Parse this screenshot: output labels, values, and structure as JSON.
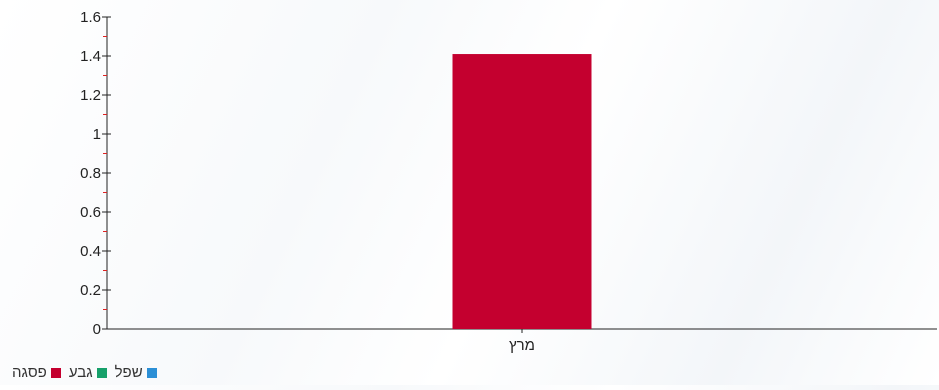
{
  "chart_data": {
    "type": "bar",
    "categories": [
      "מרץ"
    ],
    "series": [
      {
        "name": "פסגה",
        "color": "#c4002f",
        "values": [
          1.41
        ]
      },
      {
        "name": "גבע",
        "color": "#16a06a",
        "values": [
          0
        ]
      },
      {
        "name": "שפל",
        "color": "#2b8fd6",
        "values": [
          0
        ]
      }
    ],
    "ylim": [
      0,
      1.6
    ],
    "yticks": [
      "0",
      "0.2",
      "0.4",
      "0.6",
      "0.8",
      "1",
      "1.2",
      "1.4",
      "1.6"
    ],
    "legend_position": "bottom-left",
    "grid": false
  }
}
